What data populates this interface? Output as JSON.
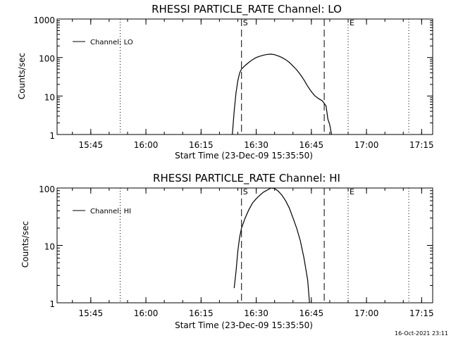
{
  "chart_data": [
    {
      "type": "line",
      "title": "RHESSI PARTICLE_RATE Channel: LO",
      "xlabel": "Start Time (23-Dec-09 15:35:50)",
      "ylabel": "Counts/sec",
      "y_scale": "log",
      "ylim": [
        1,
        1000
      ],
      "y_ticks": [
        "1",
        "10",
        "100",
        "1000"
      ],
      "xlim": [
        "15:35:50",
        "17:18:00"
      ],
      "x_ticks": [
        "15:45",
        "16:00",
        "16:15",
        "16:30",
        "16:45",
        "17:00",
        "17:15"
      ],
      "legend": {
        "position": "top-left",
        "entries": [
          "Channel: LO"
        ]
      },
      "series": [
        {
          "name": "Channel: LO",
          "x": [
            "16:23:30",
            "16:24:00",
            "16:24:30",
            "16:25:00",
            "16:25:30",
            "16:26:00",
            "16:27:00",
            "16:28:00",
            "16:29:00",
            "16:30:00",
            "16:31:00",
            "16:32:00",
            "16:33:00",
            "16:34:00",
            "16:35:00",
            "16:36:00",
            "16:37:00",
            "16:38:00",
            "16:39:00",
            "16:40:00",
            "16:41:00",
            "16:42:00",
            "16:43:00",
            "16:44:00",
            "16:45:00",
            "16:46:00",
            "16:47:00",
            "16:48:00",
            "16:49:00",
            "16:49:30",
            "16:50:00",
            "16:50:30"
          ],
          "y": [
            1,
            4,
            12,
            25,
            40,
            50,
            62,
            75,
            88,
            100,
            108,
            115,
            120,
            122,
            118,
            110,
            100,
            88,
            75,
            60,
            48,
            36,
            26,
            18,
            13,
            10,
            8.5,
            7.5,
            5.5,
            2.5,
            1.8,
            1
          ]
        }
      ],
      "markers": {
        "dashed": [
          {
            "label": "S",
            "time": "16:26:00"
          },
          {
            "label": "",
            "time": "16:48:30"
          }
        ],
        "dotted": [
          {
            "label": "",
            "time": "15:53:00"
          },
          {
            "label": "E",
            "time": "16:55:00"
          },
          {
            "label": "",
            "time": "17:11:30"
          }
        ]
      }
    },
    {
      "type": "line",
      "title": "RHESSI PARTICLE_RATE Channel: HI",
      "xlabel": "Start Time (23-Dec-09 15:35:50)",
      "ylabel": "Counts/sec",
      "y_scale": "log",
      "ylim": [
        1,
        100
      ],
      "y_ticks": [
        "1",
        "10",
        "100"
      ],
      "xlim": [
        "15:35:50",
        "17:18:00"
      ],
      "x_ticks": [
        "15:45",
        "16:00",
        "16:15",
        "16:30",
        "16:45",
        "17:00",
        "17:15"
      ],
      "legend": {
        "position": "top-left",
        "entries": [
          "Channel: HI"
        ]
      },
      "series": [
        {
          "name": "Channel: HI",
          "x": [
            "16:24:00",
            "16:24:30",
            "16:25:00",
            "16:25:30",
            "16:26:00",
            "16:27:00",
            "16:28:00",
            "16:29:00",
            "16:30:00",
            "16:31:00",
            "16:32:00",
            "16:33:00",
            "16:34:00",
            "16:35:00",
            "16:36:00",
            "16:37:00",
            "16:38:00",
            "16:39:00",
            "16:40:00",
            "16:41:00",
            "16:42:00",
            "16:43:00",
            "16:44:00",
            "16:44:30"
          ],
          "y": [
            1.8,
            3.5,
            8,
            14,
            20,
            30,
            42,
            55,
            65,
            75,
            85,
            92,
            100,
            98,
            88,
            75,
            60,
            45,
            30,
            20,
            12,
            6,
            2.5,
            1
          ]
        }
      ],
      "markers": {
        "dashed": [
          {
            "label": "S",
            "time": "16:26:00"
          },
          {
            "label": "",
            "time": "16:48:30"
          }
        ],
        "dotted": [
          {
            "label": "",
            "time": "15:53:00"
          },
          {
            "label": "E",
            "time": "16:55:00"
          },
          {
            "label": "",
            "time": "17:11:30"
          }
        ]
      }
    }
  ],
  "footer": {
    "timestamp": "16-Oct-2021 23:11"
  }
}
